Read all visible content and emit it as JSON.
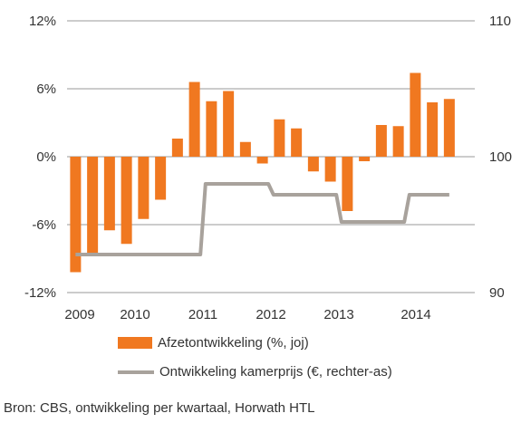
{
  "chart_data": {
    "type": "bar+line",
    "x_ticks": [
      "2009",
      "2010",
      "2011",
      "2012",
      "2013",
      "2014"
    ],
    "quarters": [
      "2009-Q1",
      "2009-Q2",
      "2009-Q3",
      "2009-Q4",
      "2010-Q1",
      "2010-Q2",
      "2010-Q3",
      "2010-Q4",
      "2011-Q1",
      "2011-Q2",
      "2011-Q3",
      "2011-Q4",
      "2012-Q1",
      "2012-Q2",
      "2012-Q3",
      "2012-Q4",
      "2013-Q1",
      "2013-Q2",
      "2013-Q3",
      "2013-Q4",
      "2014-Q1",
      "2014-Q2",
      "2014-Q3"
    ],
    "left_axis": {
      "ticks": [
        "12%",
        "6%",
        "0%",
        "-6%",
        "-12%"
      ],
      "range": [
        -12,
        12
      ]
    },
    "right_axis": {
      "ticks": [
        "110",
        "100",
        "90"
      ],
      "range": [
        90,
        110
      ]
    },
    "series": [
      {
        "name": "Afzetontwikkeling (%, joj)",
        "kind": "bar",
        "axis": "left",
        "color": "#F07820",
        "values": [
          -10.2,
          -8.6,
          -6.5,
          -7.7,
          -5.5,
          -3.8,
          1.6,
          6.6,
          4.9,
          5.8,
          1.3,
          -0.6,
          3.3,
          2.5,
          -1.3,
          -2.2,
          -4.8,
          -0.4,
          2.8,
          2.7,
          7.4,
          4.8,
          5.1
        ]
      },
      {
        "name": "Ontwikkeling kamerprijs (€, rechter-as)",
        "kind": "line",
        "axis": "right",
        "color": "#A8A29C",
        "values": [
          92.8,
          92.8,
          92.8,
          92.8,
          92.8,
          92.8,
          92.8,
          92.8,
          98.0,
          98.0,
          98.0,
          98.0,
          97.2,
          97.2,
          97.2,
          97.2,
          95.2,
          95.2,
          95.2,
          95.2,
          97.2,
          97.2,
          97.2
        ]
      }
    ]
  },
  "source": "Bron: CBS, ontwikkeling per kwartaal, Horwath HTL"
}
